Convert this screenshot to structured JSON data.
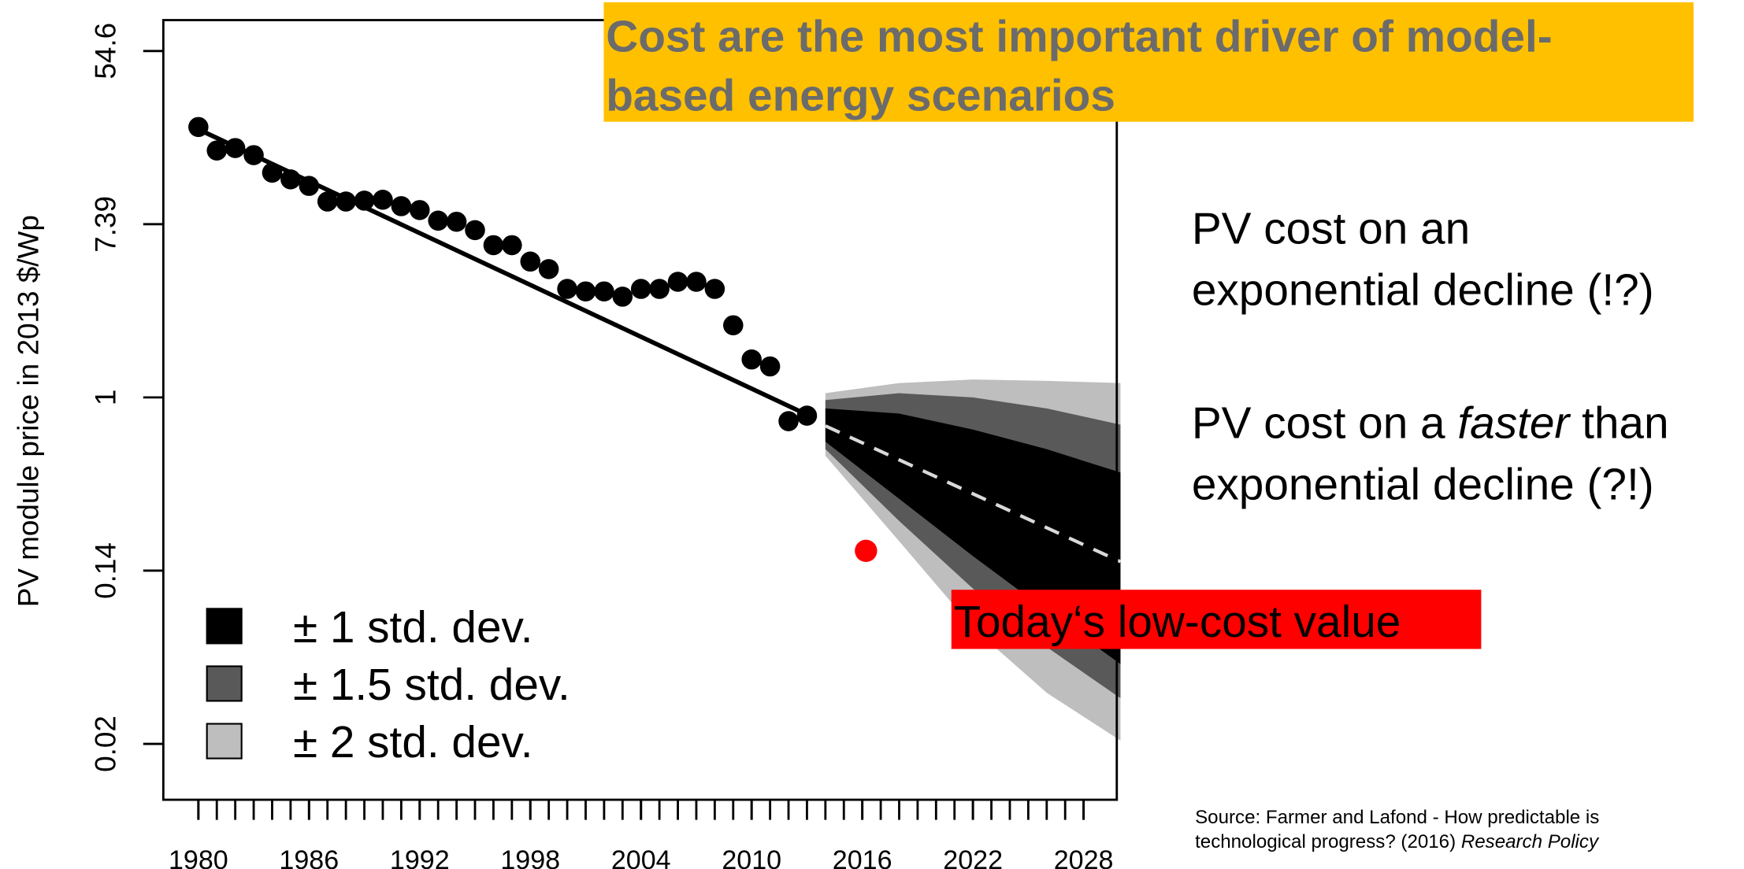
{
  "chart_data": {
    "type": "scatter",
    "title": [
      "Cost are the most important driver of model-",
      "based energy scenarios"
    ],
    "ylabel": "PV module price in 2013 $/Wp",
    "ylog": true,
    "xlim": [
      1978.1,
      2029.8
    ],
    "ylim": [
      0.0096,
      78
    ],
    "xticks": [
      1980,
      1986,
      1992,
      1998,
      2004,
      2010,
      2016,
      2022,
      2028
    ],
    "xticks_minor": [
      1980,
      1981,
      1982,
      1983,
      1984,
      1985,
      1986,
      1987,
      1988,
      1989,
      1990,
      1991,
      1992,
      1993,
      1994,
      1995,
      1996,
      1997,
      1998,
      1999,
      2000,
      2001,
      2002,
      2003,
      2004,
      2005,
      2006,
      2007,
      2008,
      2009,
      2010,
      2011,
      2012,
      2013,
      2014,
      2015,
      2016,
      2017,
      2018,
      2019,
      2020,
      2021,
      2022,
      2023,
      2024,
      2025,
      2026,
      2027,
      2028
    ],
    "yticks": [
      {
        "value": 0.0183,
        "label": "0.02"
      },
      {
        "value": 0.1353,
        "label": "0.14"
      },
      1,
      {
        "value": 7.389,
        "label": "7.39"
      },
      {
        "value": 54.6,
        "label": "54.6"
      }
    ],
    "points": {
      "color": "#000000",
      "x": [
        1980,
        1981,
        1982,
        1983,
        1984,
        1985,
        1986,
        1987,
        1988,
        1989,
        1990,
        1991,
        1992,
        1993,
        1994,
        1995,
        1996,
        1997,
        1998,
        1999,
        2000,
        2001,
        2002,
        2003,
        2004,
        2005,
        2006,
        2007,
        2008,
        2009,
        2010,
        2011,
        2012,
        2013
      ],
      "values": [
        22.7,
        17.3,
        17.8,
        16.4,
        13.4,
        12.4,
        11.5,
        9.6,
        9.6,
        9.7,
        9.8,
        9.1,
        8.7,
        7.7,
        7.6,
        6.9,
        5.8,
        5.8,
        4.8,
        4.4,
        3.5,
        3.4,
        3.4,
        3.2,
        3.5,
        3.5,
        3.8,
        3.8,
        3.5,
        2.3,
        1.55,
        1.43,
        0.76,
        0.81
      ]
    },
    "fit": {
      "color": "#000000",
      "x": [
        1980,
        2013.5
      ],
      "values": [
        22.1,
        0.78
      ]
    },
    "forecast": {
      "color": "#d9d9d9",
      "x": [
        2014,
        2030
      ],
      "values": [
        0.72,
        0.15
      ]
    },
    "bands": [
      {
        "name": "± 1 std. dev.",
        "color": "#000000",
        "x": [
          2014,
          2018,
          2022,
          2026,
          2030
        ],
        "upper": [
          0.88,
          0.83,
          0.69,
          0.55,
          0.42
        ],
        "lower": [
          0.6,
          0.31,
          0.16,
          0.085,
          0.046
        ]
      },
      {
        "name": "± 1.5 std. dev.",
        "color": "#595959",
        "x": [
          2014,
          2018,
          2022,
          2026,
          2030
        ],
        "upper": [
          0.97,
          1.05,
          1.0,
          0.88,
          0.73
        ],
        "lower": [
          0.55,
          0.24,
          0.11,
          0.056,
          0.031
        ]
      },
      {
        "name": "± 2 std. dev.",
        "color": "#bebebe",
        "x": [
          2014,
          2018,
          2022,
          2026,
          2030
        ],
        "upper": [
          1.05,
          1.18,
          1.23,
          1.21,
          1.18
        ],
        "lower": [
          0.51,
          0.19,
          0.07,
          0.033,
          0.019
        ]
      }
    ],
    "highlight": {
      "x": 2016.2,
      "value": 0.17,
      "color": "#ff0000",
      "label": "Today‘s low-cost value"
    },
    "notes": {
      "first": [
        "PV cost on an",
        "exponential decline (!?)"
      ],
      "second": {
        "line1": [
          "PV cost on a ",
          "faster",
          " than"
        ],
        "line2": "exponential decline (?!)"
      }
    },
    "source": {
      "line1": "Source: Farmer and Lafond - How predictable is",
      "line2": [
        "technological progress? (2016) ",
        "Research Policy"
      ]
    }
  }
}
